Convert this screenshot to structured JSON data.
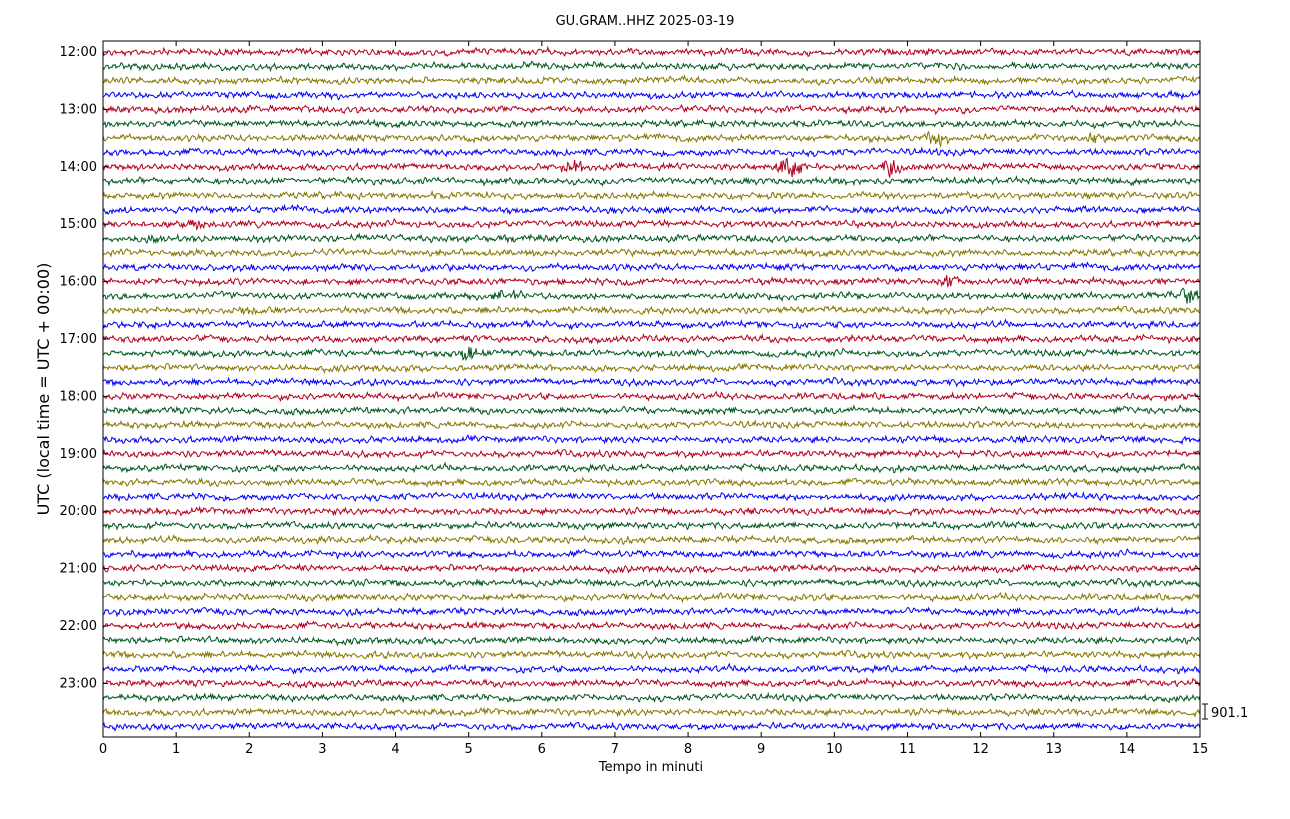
{
  "chart_data": {
    "type": "line",
    "subtype": "helicorder",
    "title": "GU.GRAM..HHZ 2025-03-19",
    "xlabel": "Tempo in minuti",
    "ylabel": "UTC (local time = UTC + 00:00)",
    "xlim": [
      0,
      15
    ],
    "x_ticks": [
      "0",
      "1",
      "2",
      "3",
      "4",
      "5",
      "6",
      "7",
      "8",
      "9",
      "10",
      "11",
      "12",
      "13",
      "14",
      "15"
    ],
    "y_ticks": [
      "12:00",
      "13:00",
      "14:00",
      "15:00",
      "16:00",
      "17:00",
      "18:00",
      "19:00",
      "20:00",
      "21:00",
      "22:00",
      "23:00"
    ],
    "start_time": "12:00",
    "minutes_per_line": 15,
    "lines": 48,
    "trace_colors": [
      "#b2001e",
      "#00561f",
      "#857700",
      "#0000ff"
    ],
    "scale_label": "901.1",
    "events": [
      {
        "line": 6,
        "minute": 11.4,
        "amplitude": 1.2
      },
      {
        "line": 6,
        "minute": 13.6,
        "amplitude": 1.0
      },
      {
        "line": 8,
        "minute": 6.4,
        "amplitude": 1.0
      },
      {
        "line": 8,
        "minute": 9.4,
        "amplitude": 2.0
      },
      {
        "line": 8,
        "minute": 10.8,
        "amplitude": 1.5
      },
      {
        "line": 12,
        "minute": 1.2,
        "amplitude": 1.0
      },
      {
        "line": 13,
        "minute": 0.7,
        "amplitude": 1.0
      },
      {
        "line": 16,
        "minute": 11.6,
        "amplitude": 1.0
      },
      {
        "line": 17,
        "minute": 5.5,
        "amplitude": 1.0
      },
      {
        "line": 17,
        "minute": 14.8,
        "amplitude": 1.2
      },
      {
        "line": 18,
        "minute": 2.0,
        "amplitude": 0.8
      },
      {
        "line": 21,
        "minute": 5.0,
        "amplitude": 0.9
      }
    ],
    "grid": false,
    "legend": "none"
  }
}
